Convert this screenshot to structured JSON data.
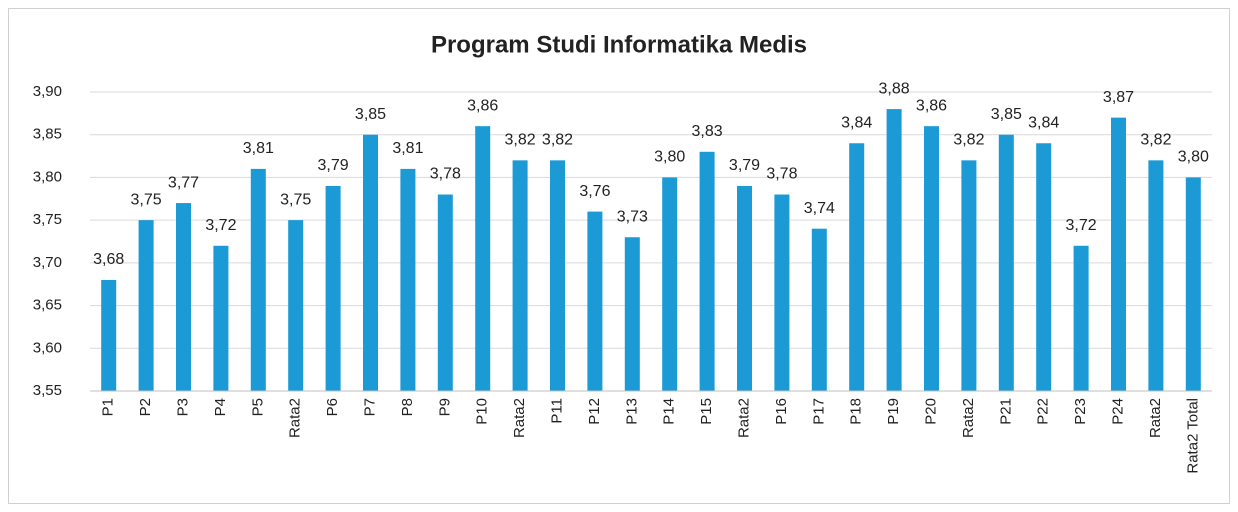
{
  "chart_data": {
    "type": "bar",
    "title": "Program Studi Informatika Medis",
    "categories": [
      "P1",
      "P2",
      "P3",
      "P4",
      "P5",
      "Rata2",
      "P6",
      "P7",
      "P8",
      "P9",
      "P10",
      "Rata2",
      "P11",
      "P12",
      "P13",
      "P14",
      "P15",
      "Rata2",
      "P16",
      "P17",
      "P18",
      "P19",
      "P20",
      "Rata2",
      "P21",
      "P22",
      "P23",
      "P24",
      "Rata2",
      "Rata2 Total"
    ],
    "values": [
      3.68,
      3.75,
      3.77,
      3.72,
      3.81,
      3.75,
      3.79,
      3.85,
      3.81,
      3.78,
      3.86,
      3.82,
      3.82,
      3.76,
      3.73,
      3.8,
      3.83,
      3.79,
      3.78,
      3.74,
      3.84,
      3.88,
      3.86,
      3.82,
      3.85,
      3.84,
      3.72,
      3.87,
      3.82,
      3.8
    ],
    "value_labels": [
      "3,68",
      "3,75",
      "3,77",
      "3,72",
      "3,81",
      "3,75",
      "3,79",
      "3,85",
      "3,81",
      "3,78",
      "3,86",
      "3,82",
      "3,82",
      "3,76",
      "3,73",
      "3,80",
      "3,83",
      "3,79",
      "3,78",
      "3,74",
      "3,84",
      "3,88",
      "3,86",
      "3,82",
      "3,85",
      "3,84",
      "3,72",
      "3,87",
      "3,82",
      "3,80"
    ],
    "color": "#1b9ad6",
    "ylim": [
      3.55,
      3.9
    ],
    "yticks": [
      {
        "value": 3.55,
        "label": "3,55"
      },
      {
        "value": 3.6,
        "label": "3,60"
      },
      {
        "value": 3.65,
        "label": "3,65"
      },
      {
        "value": 3.7,
        "label": "3,70"
      },
      {
        "value": 3.75,
        "label": "3,75"
      },
      {
        "value": 3.8,
        "label": "3,80"
      },
      {
        "value": 3.85,
        "label": "3,85"
      },
      {
        "value": 3.9,
        "label": "3,90"
      }
    ],
    "grid": true
  }
}
